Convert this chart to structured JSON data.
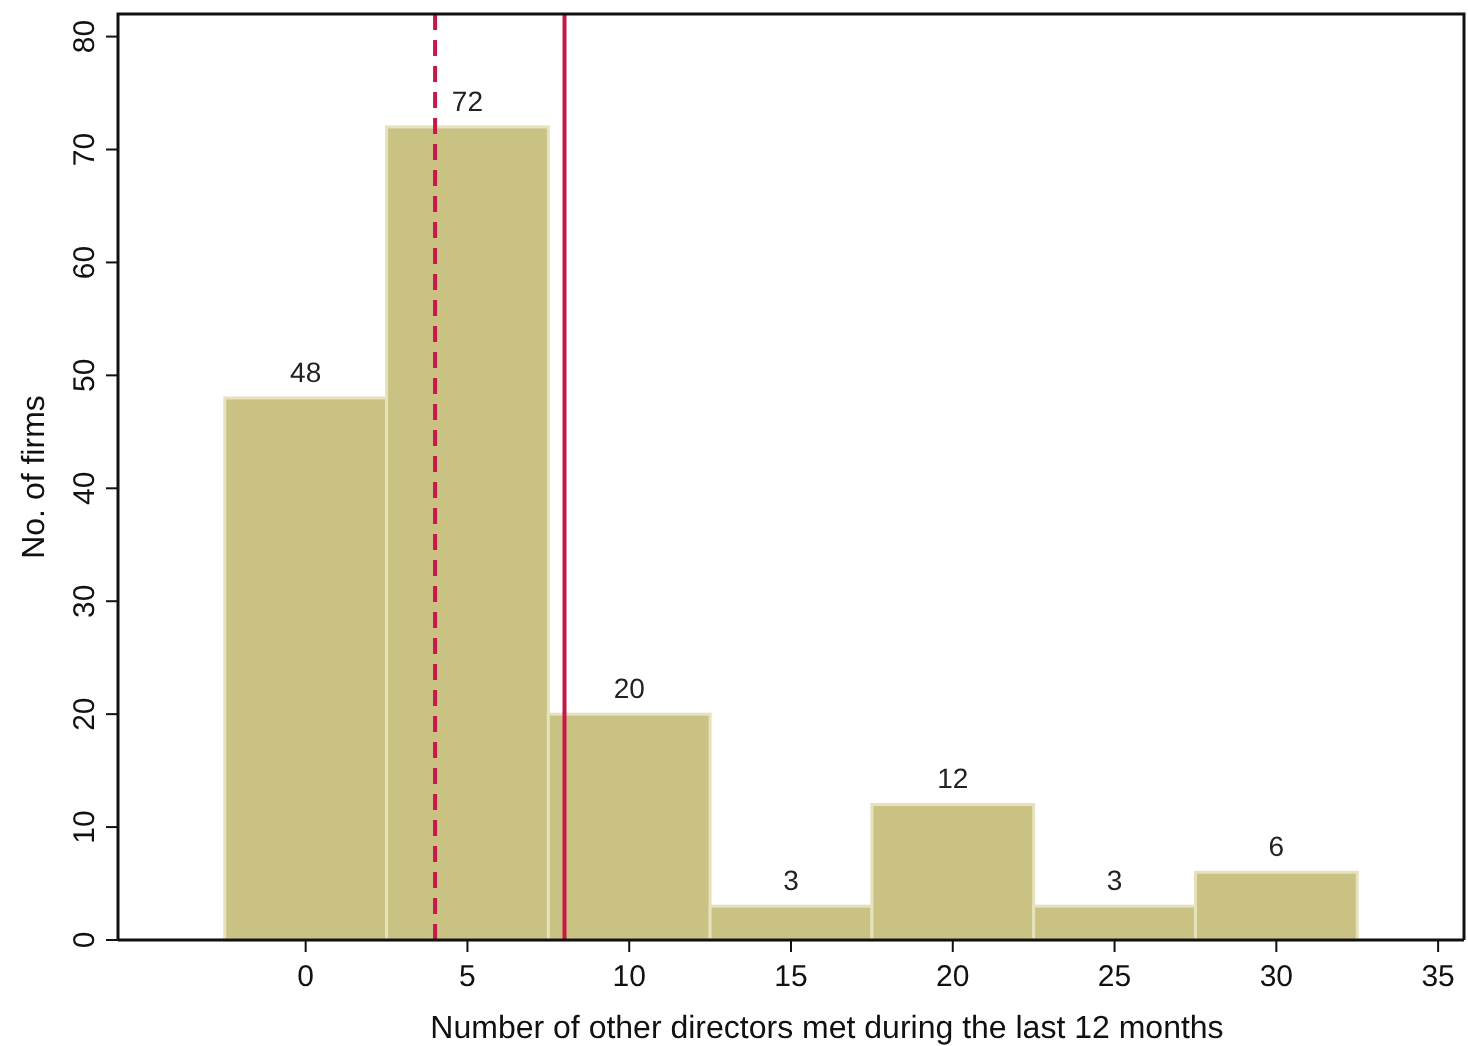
{
  "chart_data": {
    "type": "histogram",
    "xlabel": "Number of other directors met during the last 12 months",
    "ylabel": "No. of firms",
    "bins": [
      -2.5,
      2.5,
      7.5,
      12.5,
      17.5,
      22.5,
      27.5,
      32.5
    ],
    "values": [
      48,
      72,
      20,
      3,
      12,
      3,
      6
    ],
    "color": "#c9c282",
    "data_labels": true,
    "xlim": [
      -5.8,
      35.8
    ],
    "xticks": [
      0,
      5,
      10,
      15,
      20,
      25,
      30,
      35
    ],
    "ylim": [
      0,
      82
    ],
    "yticks": [
      0,
      10,
      20,
      30,
      40,
      50,
      60,
      70,
      80
    ],
    "grid": false,
    "ref_lines": [
      {
        "axis": "x",
        "value": 4,
        "color": "#c8174a",
        "line_style": "dashed"
      },
      {
        "axis": "x",
        "value": 8,
        "color": "#c8174a",
        "line_style": "solid"
      }
    ]
  }
}
